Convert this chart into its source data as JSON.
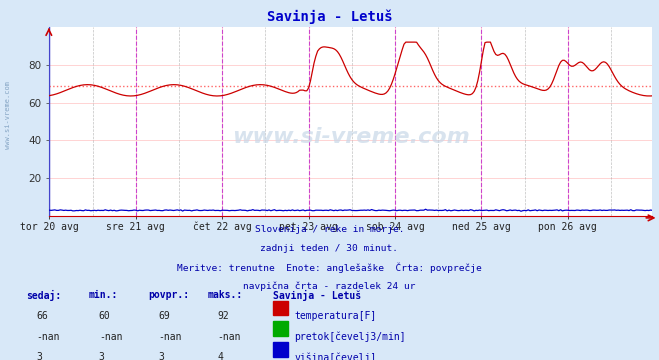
{
  "title": "Savinja - Letuš",
  "title_color": "#0000cc",
  "bg_color": "#d8e8f8",
  "plot_bg_color": "#ffffff",
  "x_tick_labels": [
    "tor 20 avg",
    "sre 21 avg",
    "čet 22 avg",
    "pet 23 avg",
    "sob 24 avg",
    "ned 25 avg",
    "pon 26 avg"
  ],
  "x_ticks_positions": [
    0,
    48,
    96,
    144,
    192,
    240,
    288
  ],
  "total_points": 336,
  "ylim": [
    0,
    100
  ],
  "yticks": [
    20,
    40,
    60,
    80
  ],
  "avg_line_value": 69,
  "avg_line_color": "#ff6666",
  "temp_line_color": "#cc0000",
  "flow_line_color": "#00aa00",
  "height_line_color": "#0000cc",
  "vline_solid_color": "#cc44cc",
  "vline_dash_color": "#999999",
  "grid_color": "#ffcccc",
  "subtitle_lines": [
    "Slovenija / reke in morje.",
    "zadnji teden / 30 minut.",
    "Meritve: trenutne  Enote: anglešaške  Črta: povprečje",
    "navpična črta - razdelek 24 ur"
  ],
  "table_headers": [
    "sedaj:",
    "min.:",
    "povpr.:",
    "maks.:"
  ],
  "table_rows": [
    [
      "66",
      "60",
      "69",
      "92"
    ],
    [
      "-nan",
      "-nan",
      "-nan",
      "-nan"
    ],
    [
      "3",
      "3",
      "3",
      "4"
    ]
  ],
  "legend_labels": [
    "temperatura[F]",
    "pretok[čevelj3/min]",
    "višina[čevelj]"
  ],
  "legend_colors": [
    "#cc0000",
    "#00aa00",
    "#0000cc"
  ],
  "station_label": "Savinja - Letuš",
  "text_color": "#0000aa",
  "watermark": "www.si-vreme.com"
}
